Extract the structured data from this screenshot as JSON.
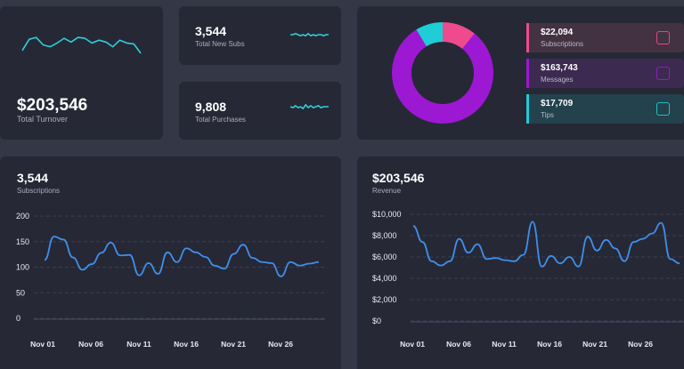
{
  "turnover": {
    "value": "$203,546",
    "label": "Total Turnover",
    "sparkline": [
      30,
      18,
      16,
      24,
      26,
      22,
      17,
      21,
      16,
      17,
      22,
      19,
      21,
      26,
      19,
      22,
      23,
      33
    ]
  },
  "new_subs": {
    "value": "3,544",
    "label": "Total New Subs",
    "sparkline": [
      5,
      5,
      6,
      5,
      4,
      5,
      4,
      6,
      4,
      5,
      4,
      5,
      5,
      4,
      5,
      5
    ]
  },
  "purchases": {
    "value": "9,808",
    "label": "Total Purchases",
    "sparkline": [
      5,
      4,
      6,
      4,
      5,
      3,
      7,
      4,
      6,
      4,
      5,
      6,
      4,
      5,
      5,
      5
    ]
  },
  "breakdown": {
    "stats": [
      {
        "name": "subscriptions",
        "value": "$22,094",
        "label": "Subscriptions",
        "color": "#ef4a8e",
        "bg": "#433242",
        "icon": "lock-icon"
      },
      {
        "name": "messages",
        "value": "$163,743",
        "label": "Messages",
        "color": "#9d18d2",
        "bg": "#3d2a51",
        "icon": "chat-icon"
      },
      {
        "name": "tips",
        "value": "$17,709",
        "label": "Tips",
        "color": "#1ecdd6",
        "bg": "#23424d",
        "icon": "money-icon"
      }
    ]
  },
  "subscriptions_panel": {
    "value": "3,544",
    "label": "Subscriptions"
  },
  "revenue_panel": {
    "value": "$203,546",
    "label": "Revenue"
  },
  "chart_data": [
    {
      "type": "pie",
      "style": "donut",
      "categories": [
        "Subscriptions",
        "Messages",
        "Tips"
      ],
      "values": [
        22094,
        163743,
        17709
      ],
      "colors": [
        "#ef4a8e",
        "#9d18d2",
        "#1ecdd6"
      ]
    },
    {
      "type": "line",
      "title": "Subscriptions",
      "x_ticks": [
        "Nov 01",
        "Nov 06",
        "Nov 11",
        "Nov 16",
        "Nov 21",
        "Nov 26"
      ],
      "y_ticks": [
        "200",
        "150",
        "100",
        "50",
        "0"
      ],
      "ylim": [
        0,
        200
      ],
      "x": [
        1,
        2,
        3,
        4,
        5,
        6,
        7,
        8,
        9,
        10,
        11,
        12,
        13,
        14,
        15,
        16,
        17,
        18,
        19,
        20,
        21,
        22,
        23,
        24,
        25,
        26,
        27,
        28,
        29,
        30
      ],
      "series": [
        {
          "values": [
            114,
            160,
            154,
            119,
            95,
            106,
            128,
            148,
            123,
            124,
            84,
            108,
            87,
            129,
            110,
            137,
            129,
            120,
            103,
            97,
            126,
            144,
            118,
            110,
            108,
            82,
            110,
            103,
            107,
            110
          ]
        }
      ],
      "color": "#3f8fea",
      "grid": true
    },
    {
      "type": "line",
      "title": "Revenue",
      "x_ticks": [
        "Nov 01",
        "Nov 06",
        "Nov 11",
        "Nov 16",
        "Nov 21",
        "Nov 26"
      ],
      "y_ticks": [
        "$10,000",
        "$8,000",
        "$6,000",
        "$4,000",
        "$2,000",
        "$0"
      ],
      "ylim": [
        0,
        10000
      ],
      "x": [
        1,
        2,
        3,
        4,
        5,
        6,
        7,
        8,
        9,
        10,
        11,
        12,
        13,
        14,
        15,
        16,
        17,
        18,
        19,
        20,
        21,
        22,
        23,
        24,
        25,
        26,
        27,
        28,
        29,
        30
      ],
      "series": [
        {
          "values": [
            8900,
            7400,
            5600,
            5200,
            5600,
            7700,
            6400,
            7200,
            5800,
            5900,
            5700,
            5600,
            6200,
            9300,
            5100,
            6100,
            5400,
            6000,
            5100,
            7900,
            6600,
            7600,
            6800,
            5600,
            7400,
            7700,
            8200,
            9200,
            5800,
            5400
          ]
        }
      ],
      "color": "#3f8fea",
      "grid": true
    }
  ]
}
